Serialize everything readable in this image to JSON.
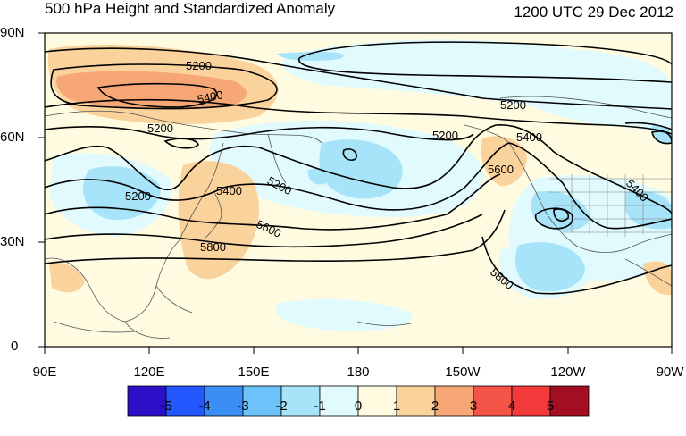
{
  "title": "500 hPa Height and Standardized Anomaly",
  "timestamp": "1200 UTC 29 Dec 2012",
  "lat_labels": [
    "90N",
    "60N",
    "30N",
    "0"
  ],
  "lon_labels": [
    "90E",
    "120E",
    "150E",
    "180",
    "150W",
    "120W",
    "90W"
  ],
  "contour_labels": [
    "5200",
    "5400",
    "5200",
    "5200",
    "5200",
    "5400",
    "5200",
    "5200",
    "5400",
    "5600",
    "5800",
    "5600",
    "5400",
    "5800"
  ],
  "colorbar": {
    "ticks": [
      "-5",
      "-4",
      "-3",
      "-2",
      "-1",
      "0",
      "1",
      "2",
      "3",
      "4",
      "5"
    ],
    "colors": [
      "#2b10c8",
      "#2358ff",
      "#3b8ef5",
      "#6cc3f9",
      "#a8e4f9",
      "#e1fafd",
      "#fffbe0",
      "#fad29c",
      "#f7a675",
      "#f45348",
      "#f23a3a",
      "#a30e22"
    ]
  }
}
